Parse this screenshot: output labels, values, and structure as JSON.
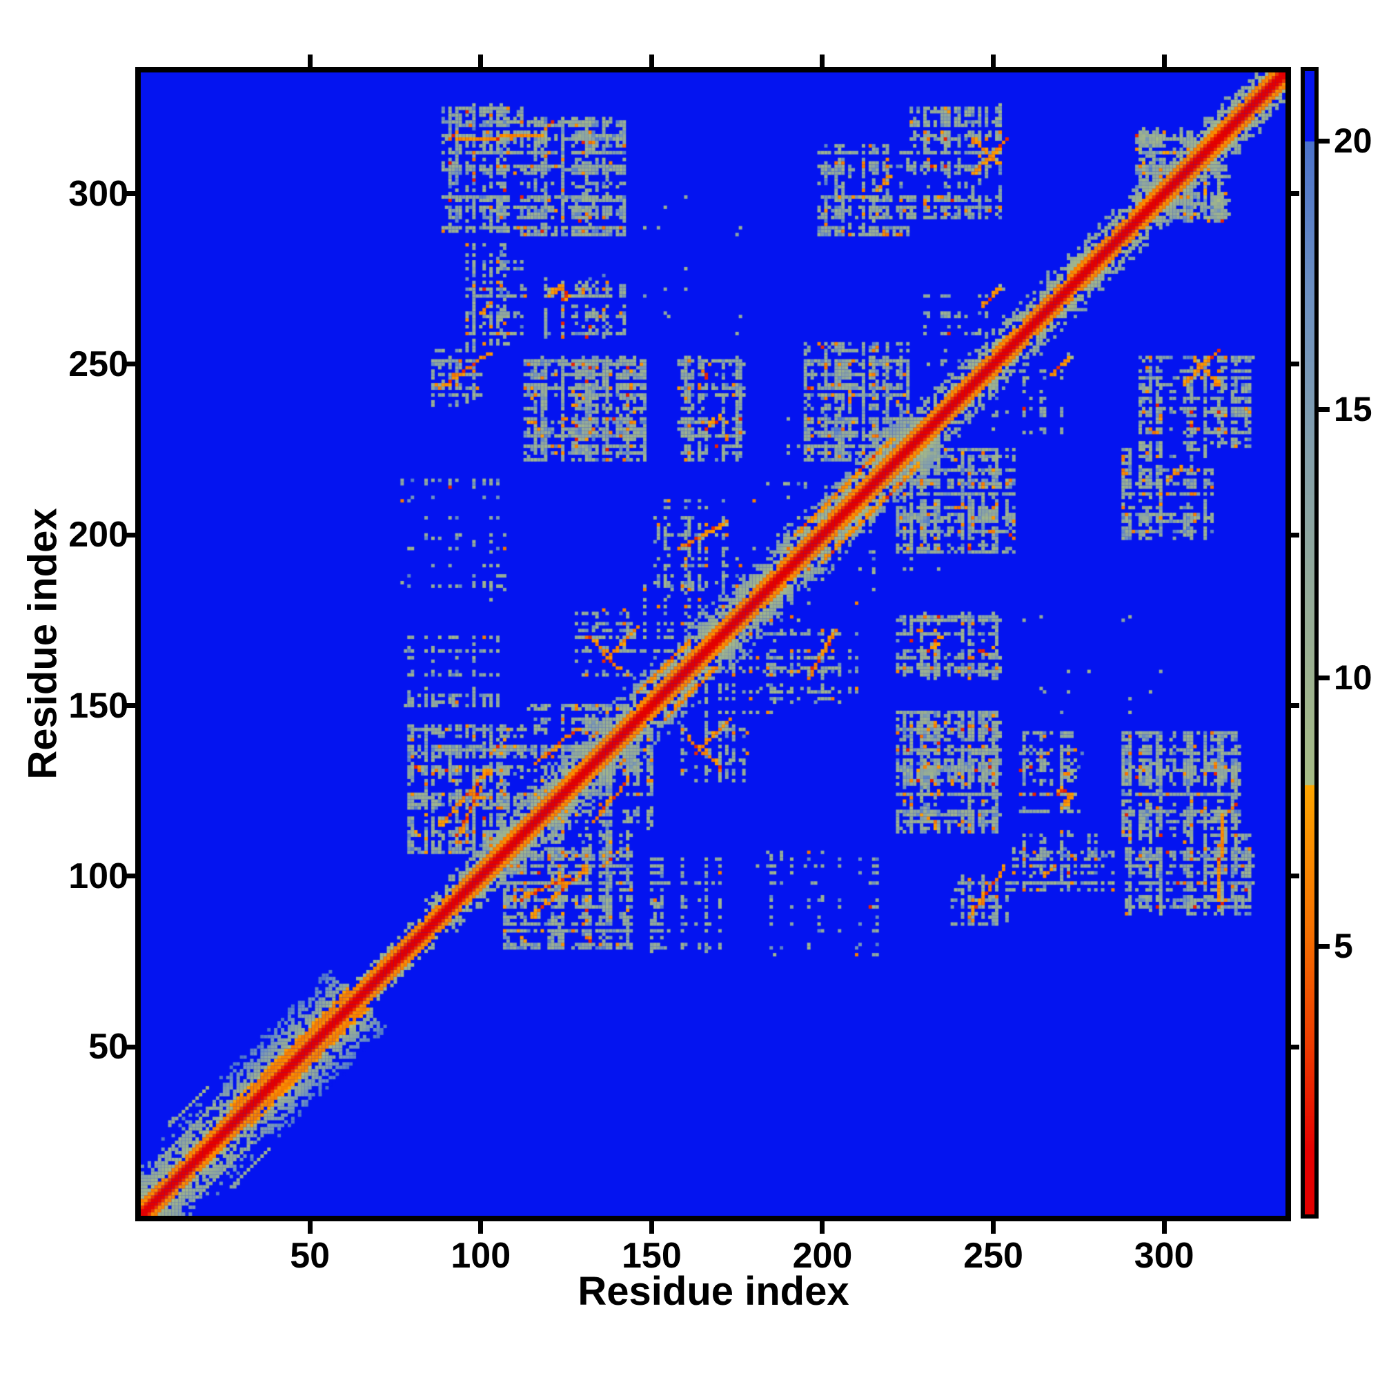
{
  "figure": {
    "background": "#ffffff",
    "frame_color": "#000000"
  },
  "axes": {
    "xlabel": "Residue index",
    "ylabel": "Residue index"
  },
  "chart_data": {
    "type": "heatmap",
    "title": "",
    "xlabel": "Residue index",
    "ylabel": "Residue index",
    "x_range": [
      1,
      335
    ],
    "y_range": [
      1,
      335
    ],
    "x_ticks": [
      50,
      100,
      150,
      200,
      250,
      300
    ],
    "y_ticks": [
      50,
      100,
      150,
      200,
      250,
      300
    ],
    "grid": false,
    "colorbar": {
      "position": "right",
      "ticks": [
        20,
        15,
        10,
        5
      ],
      "vmin": 0,
      "vmax": 21.3,
      "over_color": "#0414F0",
      "segments": [
        [
          0.0,
          1.2,
          "#E30000",
          "#E60000"
        ],
        [
          1.2,
          3.2,
          "#E60000",
          "#EE3C00"
        ],
        [
          3.2,
          5.2,
          "#EE3C00",
          "#F56E00"
        ],
        [
          5.2,
          8.0,
          "#F56E00",
          "#FDA500"
        ],
        [
          8.0,
          10.5,
          "#A7BC85",
          "#9AAF92"
        ],
        [
          10.5,
          14.0,
          "#9AAF92",
          "#85A0A9"
        ],
        [
          14.0,
          17.0,
          "#85A0A9",
          "#6E91C1"
        ],
        [
          17.0,
          20.0,
          "#6E91C1",
          "#4B72CB"
        ],
        [
          20.0,
          21.3,
          "#0414F0",
          "#0414F0"
        ]
      ]
    },
    "matrix_model": {
      "n": 335,
      "background_value": 22,
      "symmetric": true,
      "band": {
        "core_values": [
          0.4,
          1.3,
          3.0
        ],
        "checker_d3": [
          4.7,
          6.9
        ],
        "checker_d4": [
          6.1,
          7.9
        ],
        "halo_start": 8.7,
        "halo_slope": 0.9,
        "jitter": 2.2,
        "dropout": 0.13,
        "widths": [
          [
            1,
            29,
            13
          ],
          [
            30,
            64,
            16
          ],
          [
            65,
            88,
            6
          ],
          [
            89,
            112,
            8
          ],
          [
            113,
            230,
            11
          ],
          [
            231,
            335,
            9
          ]
        ],
        "nterm_orange_range": [
          30,
          64
        ]
      },
      "clusters": [
        [
          89,
          112,
          289,
          326,
          0.48,
          0.05
        ],
        [
          96,
          113,
          255,
          285,
          0.4,
          0.07
        ],
        [
          85,
          100,
          238,
          254,
          0.42,
          0.05
        ],
        [
          112,
          142,
          288,
          322,
          0.5,
          0.06
        ],
        [
          113,
          148,
          222,
          252,
          0.52,
          0.09
        ],
        [
          119,
          142,
          258,
          276,
          0.38,
          0.06
        ],
        [
          158,
          177,
          222,
          252,
          0.46,
          0.08
        ],
        [
          195,
          225,
          222,
          256,
          0.5,
          0.09
        ],
        [
          199,
          225,
          288,
          314,
          0.46,
          0.07
        ],
        [
          145,
          156,
          255,
          310,
          0.14,
          0.02
        ],
        [
          226,
          252,
          293,
          326,
          0.46,
          0.08
        ],
        [
          292,
          308,
          302,
          319,
          0.5,
          0.1
        ],
        [
          259,
          277,
          238,
          261,
          0.46,
          0.09
        ],
        [
          306,
          320,
          238,
          254,
          0.46,
          0.06
        ],
        [
          288,
          306,
          224,
          239,
          0.4,
          0.07
        ],
        [
          290,
          316,
          199,
          222,
          0.44,
          0.05
        ],
        [
          226,
          249,
          158,
          176,
          0.4,
          0.06
        ],
        [
          226,
          251,
          128,
          151,
          0.44,
          0.07
        ],
        [
          264,
          277,
          106,
          139,
          0.22,
          0.04
        ],
        [
          313,
          331,
          105,
          136,
          0.34,
          0.04
        ],
        [
          288,
          313,
          103,
          128,
          0.26,
          0.03
        ],
        [
          75,
          105,
          185,
          218,
          0.26,
          0.02
        ],
        [
          78,
          105,
          150,
          171,
          0.34,
          0.03
        ],
        [
          79,
          113,
          107,
          144,
          0.5,
          0.09
        ],
        [
          113,
          143,
          118,
          150,
          0.42,
          0.08
        ],
        [
          148,
          178,
          155,
          195,
          0.3,
          0.05
        ],
        [
          150,
          172,
          186,
          210,
          0.4,
          0.07
        ],
        [
          128,
          148,
          158,
          178,
          0.36,
          0.05
        ],
        [
          180,
          210,
          185,
          215,
          0.3,
          0.04
        ],
        [
          230,
          250,
          250,
          270,
          0.3,
          0.05
        ],
        [
          95,
          113,
          180,
          205,
          0.22,
          0.02
        ],
        [
          160,
          180,
          255,
          300,
          0.12,
          0.02
        ],
        [
          180,
          200,
          222,
          240,
          0.2,
          0.03
        ],
        [
          254,
          262,
          150,
          176,
          0.2,
          0.02
        ]
      ],
      "streaks": [
        [
          88,
          243,
          102,
          253,
          "o"
        ],
        [
          93,
          316,
          118,
          317,
          "o"
        ],
        [
          244,
          306,
          254,
          316,
          "o"
        ],
        [
          309,
          251,
          316,
          244,
          "o"
        ],
        [
          158,
          196,
          172,
          204,
          "o"
        ],
        [
          136,
          163,
          146,
          173,
          "o"
        ],
        [
          116,
          133,
          128,
          143,
          "o"
        ],
        [
          132,
          170,
          140,
          161,
          "o"
        ],
        [
          88,
          115,
          102,
          131,
          "o"
        ],
        [
          93,
          112,
          100,
          126,
          "o"
        ],
        [
          196,
          204,
          220,
          228,
          "o"
        ],
        [
          146,
          154,
          161,
          169,
          "o"
        ],
        [
          192,
          200,
          204,
          212,
          "o"
        ],
        [
          124,
          269,
          125,
          271,
          "r"
        ],
        [
          100,
          265,
          103,
          268,
          "o"
        ],
        [
          216,
          301,
          219,
          305,
          "o"
        ],
        [
          267,
          247,
          272,
          252,
          "o"
        ],
        [
          231,
          166,
          234,
          170,
          "o"
        ],
        [
          270,
          120,
          272,
          124,
          "o"
        ],
        [
          5,
          16,
          22,
          33,
          "g"
        ],
        [
          9,
          27,
          20,
          38,
          "g"
        ]
      ]
    }
  }
}
